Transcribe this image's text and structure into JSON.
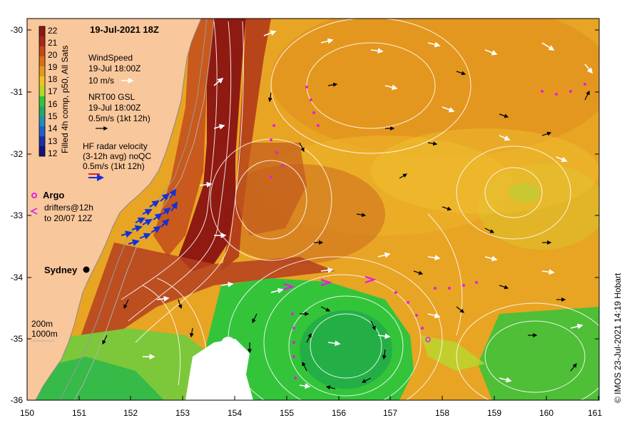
{
  "map": {
    "date_title": "19-Jul-2021 18Z",
    "credit": "© IMOS 23-Jul-2021 14:19 Hobart",
    "lon_ticks": [
      "150",
      "151",
      "152",
      "153",
      "154",
      "155",
      "156",
      "157",
      "158",
      "159",
      "160",
      "161"
    ],
    "lat_ticks": [
      "-30",
      "-31",
      "-32",
      "-33",
      "-34",
      "-35",
      "-36"
    ],
    "lon_range": [
      150,
      161
    ],
    "lat_range": [
      -36,
      -29.85
    ],
    "colors": {
      "land": "#f9c79c",
      "coast": "#8a8a8a",
      "wind_arrow": "#ffffff",
      "current_arrow": "#000000",
      "radar_arrow": "#1530d8",
      "argo": "#e020e0"
    }
  },
  "colorbar": {
    "title": "Filled 4h comp, p50, All Sats",
    "values": [
      "22",
      "21",
      "20",
      "19",
      "18",
      "17",
      "16",
      "15",
      "14",
      "13",
      "12"
    ],
    "colors": [
      "#8b1a10",
      "#a8281a",
      "#c24a18",
      "#d6701a",
      "#e29a1a",
      "#eec422",
      "#b0d82a",
      "#33c43a",
      "#22aa66",
      "#1d8fb8",
      "#1d5fd0",
      "#1a2fa8",
      "#14127a"
    ]
  },
  "legend": {
    "wind": {
      "title": "WindSpeed",
      "time": "19-Jul 18:00Z",
      "scale": "10 m/s"
    },
    "gsl": {
      "title": "NRT00 GSL",
      "time": "19-Jul 18:00Z",
      "scale": "0.5m/s (1kt 12h)"
    },
    "radar": {
      "title": "HF radar velocity",
      "avg": "(3-12h avg) noQC",
      "scale": "0.5m/s (1kt 12h)"
    },
    "argo": {
      "title": "Argo",
      "drifters_line1": "drifters@12h",
      "drifters_line2": "to 20/07 12Z"
    },
    "depth": {
      "d200": "200m",
      "d1000": "1000m"
    }
  },
  "places": [
    {
      "name": "Sydney",
      "lon": 151.2,
      "lat": -33.87
    }
  ]
}
